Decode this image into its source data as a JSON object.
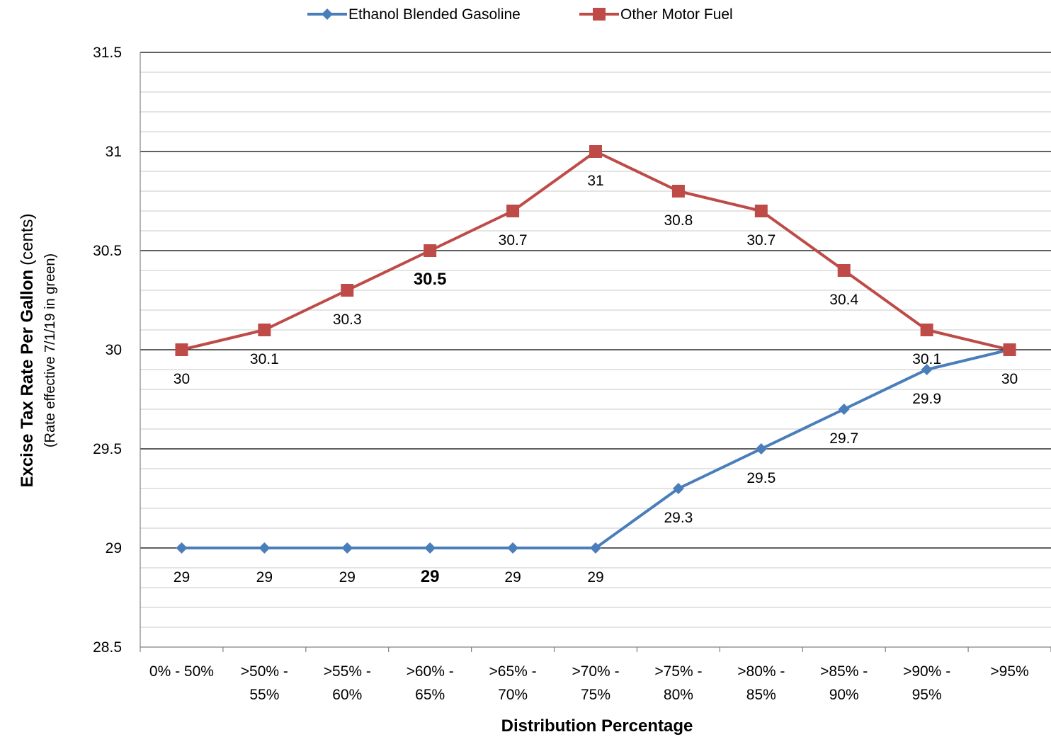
{
  "chart_data": {
    "type": "line",
    "categories": [
      [
        "0% - 50%"
      ],
      [
        ">50% -",
        "55%"
      ],
      [
        ">55% -",
        "60%"
      ],
      [
        ">60% -",
        "65%"
      ],
      [
        ">65% -",
        "70%"
      ],
      [
        ">70% -",
        "75%"
      ],
      [
        ">75% -",
        "80%"
      ],
      [
        ">80% -",
        "85%"
      ],
      [
        ">85% -",
        "90%"
      ],
      [
        ">90% -",
        "95%"
      ],
      [
        ">95%"
      ]
    ],
    "series": [
      {
        "name": "Ethanol Blended Gasoline",
        "color": "#4a7ebb",
        "marker": "diamond",
        "values": [
          29,
          29,
          29,
          29,
          29,
          29,
          29.3,
          29.5,
          29.7,
          29.9,
          30
        ],
        "labels": [
          "29",
          "29",
          "29",
          "29",
          "29",
          "29",
          "29.3",
          "29.5",
          "29.7",
          "29.9",
          ""
        ],
        "label_position": "below"
      },
      {
        "name": "Other Motor Fuel",
        "color": "#be4b48",
        "marker": "square",
        "values": [
          30,
          30.1,
          30.3,
          30.5,
          30.7,
          31,
          30.8,
          30.7,
          30.4,
          30.1,
          30
        ],
        "labels": [
          "30",
          "30.1",
          "30.3",
          "30.5",
          "30.7",
          "31",
          "30.8",
          "30.7",
          "30.4",
          "30.1",
          "30"
        ],
        "label_position": "below"
      }
    ],
    "highlight": {
      "category_index": 3,
      "color": "#00b050"
    },
    "xlabel": "Distribution Percentage",
    "ylabel": "Excise Tax Rate Per Gallon",
    "ylabel_unit": "(cents)",
    "ylabel_note": "(Rate effective 7/1/19 in green)",
    "ylim": [
      28.5,
      31.5
    ],
    "y_ticks": [
      28.5,
      29,
      29.5,
      30,
      30.5,
      31,
      31.5
    ],
    "y_tick_labels": [
      "28.5",
      "29",
      "29.5",
      "30",
      "30.5",
      "31",
      "31.5"
    ],
    "minor_step": 0.1,
    "grid": true,
    "legend_position": "top"
  }
}
